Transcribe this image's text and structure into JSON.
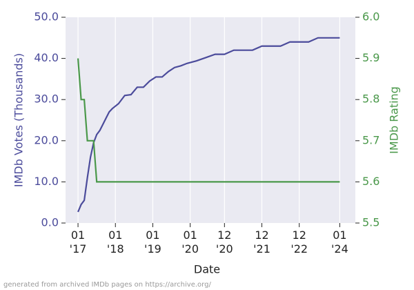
{
  "chart_data": {
    "type": "line",
    "x": [
      "2017-01",
      "2017-02",
      "2017-03",
      "2017-04",
      "2017-05",
      "2017-06",
      "2017-07",
      "2017-08",
      "2017-09",
      "2017-10",
      "2017-11",
      "2017-12",
      "2018-02",
      "2018-04",
      "2018-06",
      "2018-08",
      "2018-10",
      "2018-12",
      "2019-02",
      "2019-04",
      "2019-06",
      "2019-08",
      "2019-10",
      "2019-12",
      "2020-03",
      "2020-06",
      "2020-09",
      "2020-12",
      "2021-03",
      "2021-06",
      "2021-09",
      "2021-12",
      "2022-03",
      "2022-06",
      "2022-09",
      "2022-12",
      "2023-03",
      "2023-06",
      "2023-09",
      "2024-01"
    ],
    "series": [
      {
        "name": "IMDb Votes (Thousands)",
        "color": "#4b4b9b",
        "axis": "y",
        "values": [
          2.7,
          4.5,
          5.5,
          11,
          16,
          19.5,
          21.5,
          22.5,
          24,
          25.5,
          27,
          27.8,
          29,
          31,
          31.2,
          33,
          33,
          34.5,
          35.5,
          35.5,
          36.8,
          37.8,
          38.2,
          38.8,
          39.4,
          40.2,
          41,
          41,
          42,
          42,
          42,
          43,
          43,
          43,
          44,
          44,
          44,
          45,
          45,
          45
        ]
      },
      {
        "name": "IMDb Rating",
        "color": "#4a984a",
        "axis": "y2",
        "values": [
          5.9,
          5.8,
          5.8,
          5.7,
          5.7,
          5.7,
          5.6,
          5.6,
          5.6,
          5.6,
          5.6,
          5.6,
          5.6,
          5.6,
          5.6,
          5.6,
          5.6,
          5.6,
          5.6,
          5.6,
          5.6,
          5.6,
          5.6,
          5.6,
          5.6,
          5.6,
          5.6,
          5.6,
          5.6,
          5.6,
          5.6,
          5.6,
          5.6,
          5.6,
          5.6,
          5.6,
          5.6,
          5.6,
          5.6,
          5.6
        ]
      }
    ],
    "xlabel": "Date",
    "ylabel": "IMDb Votes (Thousands)",
    "y2label": "IMDb Rating",
    "xlim": [
      "2016-09",
      "2024-06"
    ],
    "xticks": [
      {
        "value": "2017-01",
        "label": "01\n'17"
      },
      {
        "value": "2018-01",
        "label": "01\n'18"
      },
      {
        "value": "2019-01",
        "label": "01\n'19"
      },
      {
        "value": "2020-01",
        "label": "01\n'20"
      },
      {
        "value": "2020-12",
        "label": "12\n'20"
      },
      {
        "value": "2021-12",
        "label": "12\n'21"
      },
      {
        "value": "2022-12",
        "label": "12\n'22"
      },
      {
        "value": "2024-01",
        "label": "01\n'24"
      }
    ],
    "ylim": [
      0,
      50
    ],
    "yticks": [
      {
        "value": 0,
        "label": "0.0"
      },
      {
        "value": 10,
        "label": "10.0"
      },
      {
        "value": 20,
        "label": "20.0"
      },
      {
        "value": 30,
        "label": "30.0"
      },
      {
        "value": 40,
        "label": "40.0"
      },
      {
        "value": 50,
        "label": "50.0"
      }
    ],
    "y2lim": [
      5.5,
      6
    ],
    "y2ticks": [
      5.5,
      5.6,
      5.7,
      5.8,
      5.9,
      {
        "value": 6,
        "label": "6.0"
      }
    ],
    "grid": "x",
    "footnote": "generated from archived IMDb pages on https://archive.org/"
  }
}
